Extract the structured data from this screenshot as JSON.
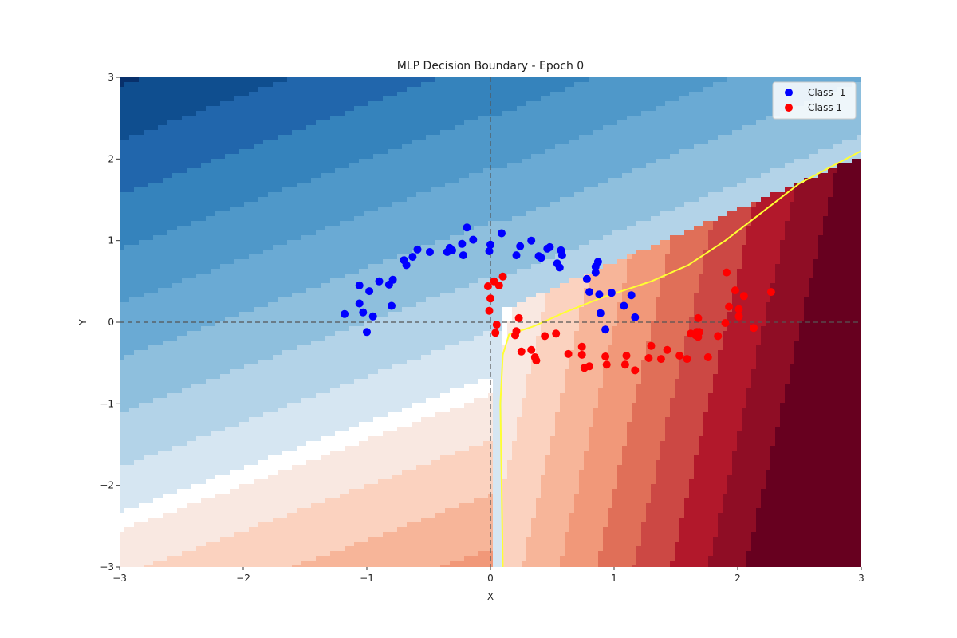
{
  "chart_data": {
    "type": "scatter",
    "title": "MLP Decision Boundary - Epoch 0",
    "xlabel": "X",
    "ylabel": "Y",
    "xlim": [
      -3,
      3
    ],
    "ylim": [
      -3,
      3
    ],
    "xticks": [
      -3,
      -2,
      -1,
      0,
      1,
      2,
      3
    ],
    "yticks": [
      -3,
      -2,
      -1,
      0,
      1,
      2,
      3
    ],
    "xtick_labels": [
      "−3",
      "−2",
      "−1",
      "0",
      "1",
      "2",
      "3"
    ],
    "ytick_labels": [
      "−3",
      "−2",
      "−1",
      "0",
      "1",
      "2",
      "3"
    ],
    "grid": false,
    "reference_lines": {
      "x": 0,
      "y": 0,
      "style": "dashed"
    },
    "legend": {
      "position": "top-right"
    },
    "background": {
      "kind": "filled-contour",
      "colormap": "RdBu_r",
      "description_levels_negative": 9,
      "description_levels_positive": 9
    },
    "decision_boundary_color": "#ffff33",
    "decision_boundary": [
      [
        0.1,
        -3.0
      ],
      [
        0.09,
        -2.0
      ],
      [
        0.08,
        -1.0
      ],
      [
        0.1,
        -0.4
      ],
      [
        0.15,
        -0.15
      ],
      [
        0.35,
        -0.05
      ],
      [
        0.6,
        0.12
      ],
      [
        0.9,
        0.3
      ],
      [
        1.3,
        0.5
      ],
      [
        1.6,
        0.7
      ],
      [
        1.9,
        1.0
      ],
      [
        2.2,
        1.35
      ],
      [
        2.5,
        1.7
      ],
      [
        3.0,
        2.1
      ]
    ],
    "series": [
      {
        "name": "Class -1",
        "color": "#0000ff",
        "points": [
          [
            -1.18,
            0.1
          ],
          [
            -1.06,
            0.45
          ],
          [
            -1.06,
            0.23
          ],
          [
            -1.03,
            0.12
          ],
          [
            -1.0,
            -0.12
          ],
          [
            -0.98,
            0.38
          ],
          [
            -0.95,
            0.07
          ],
          [
            -0.9,
            0.5
          ],
          [
            -0.82,
            0.46
          ],
          [
            -0.8,
            0.2
          ],
          [
            -0.79,
            0.52
          ],
          [
            -0.7,
            0.76
          ],
          [
            -0.68,
            0.7
          ],
          [
            -0.63,
            0.8
          ],
          [
            -0.59,
            0.89
          ],
          [
            -0.49,
            0.86
          ],
          [
            -0.35,
            0.86
          ],
          [
            -0.33,
            0.91
          ],
          [
            -0.31,
            0.88
          ],
          [
            -0.23,
            0.96
          ],
          [
            -0.22,
            0.82
          ],
          [
            -0.19,
            1.16
          ],
          [
            -0.14,
            1.01
          ],
          [
            -0.01,
            0.87
          ],
          [
            0.0,
            0.95
          ],
          [
            0.09,
            1.09
          ],
          [
            0.21,
            0.82
          ],
          [
            0.24,
            0.93
          ],
          [
            0.33,
            1.0
          ],
          [
            0.39,
            0.81
          ],
          [
            0.41,
            0.79
          ],
          [
            0.46,
            0.9
          ],
          [
            0.48,
            0.92
          ],
          [
            0.54,
            0.72
          ],
          [
            0.56,
            0.67
          ],
          [
            0.57,
            0.88
          ],
          [
            0.58,
            0.82
          ],
          [
            0.78,
            0.53
          ],
          [
            0.8,
            0.37
          ],
          [
            0.85,
            0.61
          ],
          [
            0.85,
            0.68
          ],
          [
            0.87,
            0.74
          ],
          [
            0.88,
            0.34
          ],
          [
            0.89,
            0.11
          ],
          [
            0.93,
            -0.09
          ],
          [
            0.98,
            0.36
          ],
          [
            1.08,
            0.2
          ],
          [
            1.14,
            0.33
          ],
          [
            1.17,
            0.06
          ]
        ]
      },
      {
        "name": "Class 1",
        "color": "#ff0000",
        "points": [
          [
            -0.02,
            0.44
          ],
          [
            -0.01,
            0.14
          ],
          [
            0.0,
            0.29
          ],
          [
            0.03,
            0.5
          ],
          [
            0.04,
            -0.13
          ],
          [
            0.05,
            -0.03
          ],
          [
            0.07,
            0.45
          ],
          [
            0.1,
            0.56
          ],
          [
            0.2,
            -0.16
          ],
          [
            0.21,
            -0.11
          ],
          [
            0.23,
            0.05
          ],
          [
            0.25,
            -0.36
          ],
          [
            0.33,
            -0.34
          ],
          [
            0.36,
            -0.43
          ],
          [
            0.37,
            -0.47
          ],
          [
            0.44,
            -0.17
          ],
          [
            0.53,
            -0.14
          ],
          [
            0.63,
            -0.39
          ],
          [
            0.74,
            -0.3
          ],
          [
            0.74,
            -0.4
          ],
          [
            0.76,
            -0.56
          ],
          [
            0.8,
            -0.54
          ],
          [
            0.93,
            -0.42
          ],
          [
            0.94,
            -0.52
          ],
          [
            1.09,
            -0.52
          ],
          [
            1.1,
            -0.41
          ],
          [
            1.17,
            -0.59
          ],
          [
            1.28,
            -0.44
          ],
          [
            1.3,
            -0.29
          ],
          [
            1.38,
            -0.45
          ],
          [
            1.43,
            -0.34
          ],
          [
            1.53,
            -0.41
          ],
          [
            1.59,
            -0.45
          ],
          [
            1.62,
            -0.14
          ],
          [
            1.66,
            -0.16
          ],
          [
            1.67,
            -0.12
          ],
          [
            1.68,
            0.05
          ],
          [
            1.68,
            -0.18
          ],
          [
            1.69,
            -0.12
          ],
          [
            1.76,
            -0.43
          ],
          [
            1.84,
            -0.17
          ],
          [
            1.9,
            -0.01
          ],
          [
            1.91,
            0.61
          ],
          [
            1.93,
            0.19
          ],
          [
            1.98,
            0.39
          ],
          [
            2.01,
            0.16
          ],
          [
            2.01,
            0.07
          ],
          [
            2.05,
            0.32
          ],
          [
            2.13,
            -0.07
          ],
          [
            2.27,
            0.37
          ]
        ]
      }
    ]
  }
}
